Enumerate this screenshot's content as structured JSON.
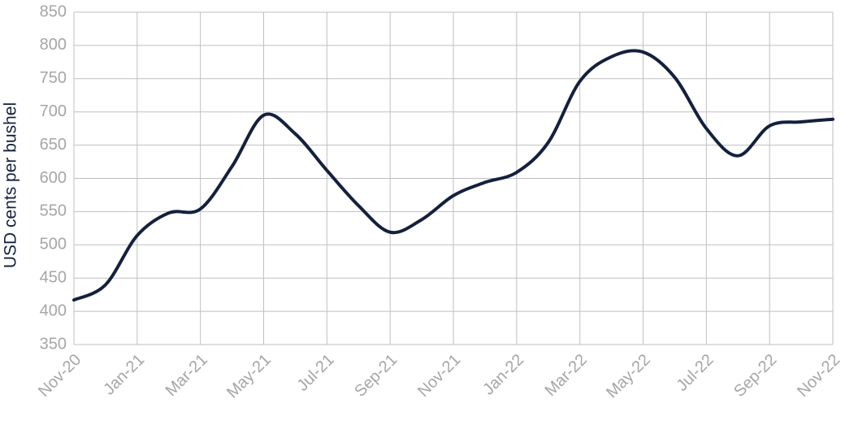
{
  "chart_data": {
    "type": "line",
    "y_label": "USD cents per bushel",
    "categories": [
      "Nov-20",
      null,
      "Jan-21",
      null,
      "Mar-21",
      null,
      "May-21",
      null,
      "Jul-21",
      null,
      "Sep-21",
      null,
      "Nov-21",
      null,
      "Jan-22",
      null,
      "Mar-22",
      null,
      "May-22",
      null,
      "Jul-22",
      null,
      "Sep-22",
      null,
      "Nov-22"
    ],
    "series": [
      {
        "color": "#14213d",
        "values": [
          417,
          440,
          514,
          548,
          554,
          618,
          695,
          667,
          612,
          559,
          519,
          538,
          574,
          594,
          609,
          654,
          746,
          783,
          790,
          752,
          675,
          634,
          679,
          685,
          689
        ]
      }
    ],
    "ylim": [
      350,
      850
    ],
    "yticks": [
      350,
      400,
      450,
      500,
      550,
      600,
      650,
      700,
      750,
      800,
      850
    ],
    "grid": true
  }
}
